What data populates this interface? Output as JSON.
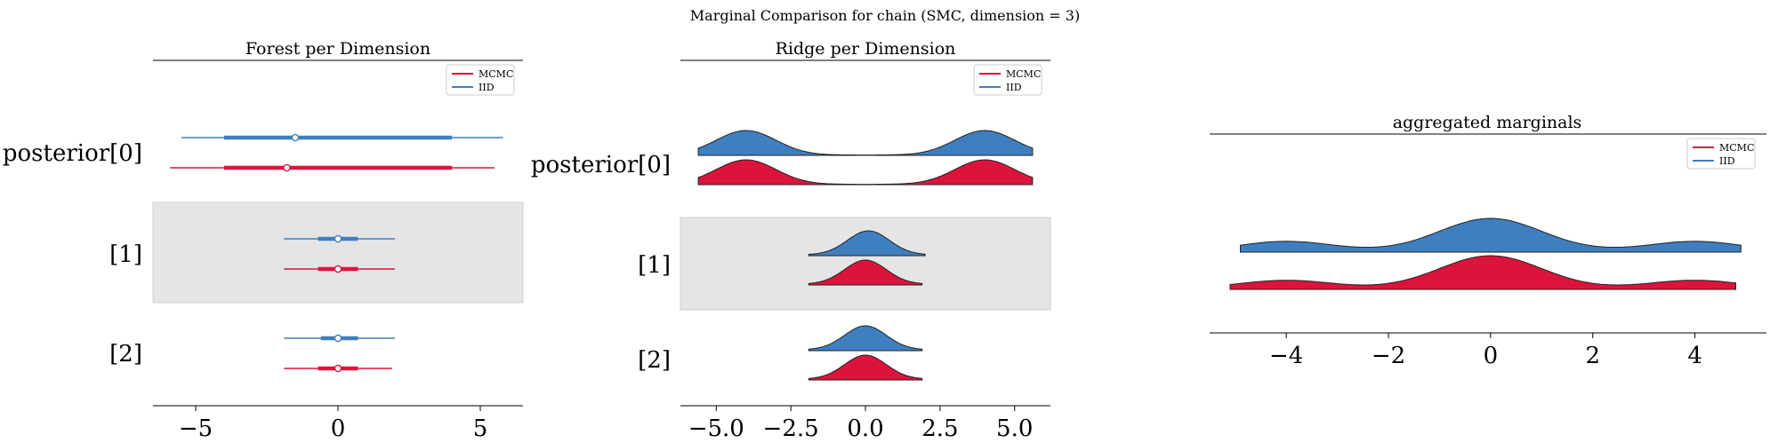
{
  "figure": {
    "suptitle": "Marginal Comparison for chain (SMC, dimension = 3)"
  },
  "colors": {
    "mcmc": "#dc143c",
    "iid": "#3f7fbf",
    "band": "#e5e5e5"
  },
  "chart_data": [
    {
      "type": "forest",
      "title": "Forest per Dimension",
      "xlim": [
        -6.5,
        6.5
      ],
      "xticks": [
        -5,
        0,
        5
      ],
      "tick_labels": [
        "−5",
        "0",
        "5"
      ],
      "rows": [
        "posterior[0]",
        "[1]",
        "[2]"
      ],
      "legend": {
        "placement": "upper-right",
        "entries": [
          "MCMC",
          "IID"
        ]
      },
      "series": [
        {
          "name": "IID",
          "color_key": "iid",
          "intervals": [
            {
              "row": 0,
              "hdi94": [
                -5.5,
                5.8
              ],
              "hdi50": [
                -4.0,
                4.0
              ],
              "median": -1.5
            },
            {
              "row": 1,
              "hdi94": [
                -1.9,
                2.0
              ],
              "hdi50": [
                -0.7,
                0.7
              ],
              "median": 0.0
            },
            {
              "row": 2,
              "hdi94": [
                -1.9,
                2.0
              ],
              "hdi50": [
                -0.6,
                0.7
              ],
              "median": 0.0
            }
          ]
        },
        {
          "name": "MCMC",
          "color_key": "mcmc",
          "intervals": [
            {
              "row": 0,
              "hdi94": [
                -5.9,
                5.5
              ],
              "hdi50": [
                -4.0,
                4.0
              ],
              "median": -1.8
            },
            {
              "row": 1,
              "hdi94": [
                -1.9,
                2.0
              ],
              "hdi50": [
                -0.7,
                0.7
              ],
              "median": 0.0
            },
            {
              "row": 2,
              "hdi94": [
                -1.9,
                1.9
              ],
              "hdi50": [
                -0.7,
                0.7
              ],
              "median": 0.0
            }
          ]
        }
      ]
    },
    {
      "type": "ridge",
      "title": "Ridge per Dimension",
      "xlim": [
        -6.2,
        6.2
      ],
      "xticks": [
        -5.0,
        -2.5,
        0.0,
        2.5,
        5.0
      ],
      "tick_labels": [
        "−5.0",
        "−2.5",
        "0.0",
        "2.5",
        "5.0"
      ],
      "rows": [
        "posterior[0]",
        "[1]",
        "[2]"
      ],
      "legend": {
        "placement": "upper-right",
        "entries": [
          "MCMC",
          "IID"
        ]
      },
      "series": [
        {
          "name": "IID",
          "color_key": "iid",
          "densities": [
            {
              "row": 0,
              "range": [
                -5.6,
                5.6
              ],
              "modes": [
                {
                  "mu": -4.0,
                  "sd": 1.0,
                  "w": 1
                },
                {
                  "mu": 4.0,
                  "sd": 1.0,
                  "w": 1
                }
              ],
              "floor": 0.015
            },
            {
              "row": 1,
              "range": [
                -1.9,
                2.0
              ],
              "modes": [
                {
                  "mu": 0.1,
                  "sd": 0.7,
                  "w": 1
                }
              ],
              "floor": 0.04
            },
            {
              "row": 2,
              "range": [
                -1.9,
                1.9
              ],
              "modes": [
                {
                  "mu": 0.0,
                  "sd": 0.7,
                  "w": 1
                }
              ],
              "floor": 0.04
            }
          ]
        },
        {
          "name": "MCMC",
          "color_key": "mcmc",
          "densities": [
            {
              "row": 0,
              "range": [
                -5.6,
                5.6
              ],
              "modes": [
                {
                  "mu": -4.0,
                  "sd": 1.0,
                  "w": 1
                },
                {
                  "mu": 4.0,
                  "sd": 1.0,
                  "w": 1
                }
              ],
              "floor": 0.015
            },
            {
              "row": 1,
              "range": [
                -1.9,
                1.9
              ],
              "modes": [
                {
                  "mu": 0.0,
                  "sd": 0.7,
                  "w": 1
                }
              ],
              "floor": 0.04
            },
            {
              "row": 2,
              "range": [
                -1.9,
                1.9
              ],
              "modes": [
                {
                  "mu": 0.0,
                  "sd": 0.7,
                  "w": 1
                }
              ],
              "floor": 0.04
            }
          ]
        }
      ]
    },
    {
      "type": "ridge",
      "title": "aggregated marginals",
      "xlim": [
        -5.5,
        5.4
      ],
      "xticks": [
        -4,
        -2,
        0,
        2,
        4
      ],
      "tick_labels": [
        "−4",
        "−2",
        "0",
        "2",
        "4"
      ],
      "legend": {
        "placement": "upper-right",
        "entries": [
          "MCMC",
          "IID"
        ]
      },
      "series": [
        {
          "name": "IID",
          "color_key": "iid",
          "range": [
            -4.9,
            4.9
          ],
          "modes": [
            {
              "mu": -4.0,
              "sd": 0.9,
              "w": 0.3
            },
            {
              "mu": 0.0,
              "sd": 1.0,
              "w": 1
            },
            {
              "mu": 4.0,
              "sd": 0.9,
              "w": 0.3
            }
          ],
          "floor": 0.03
        },
        {
          "name": "MCMC",
          "color_key": "mcmc",
          "range": [
            -5.1,
            4.8
          ],
          "modes": [
            {
              "mu": -4.0,
              "sd": 0.9,
              "w": 0.25
            },
            {
              "mu": 0.0,
              "sd": 1.0,
              "w": 1
            },
            {
              "mu": 4.0,
              "sd": 0.9,
              "w": 0.25
            }
          ],
          "floor": 0.03
        }
      ]
    }
  ]
}
